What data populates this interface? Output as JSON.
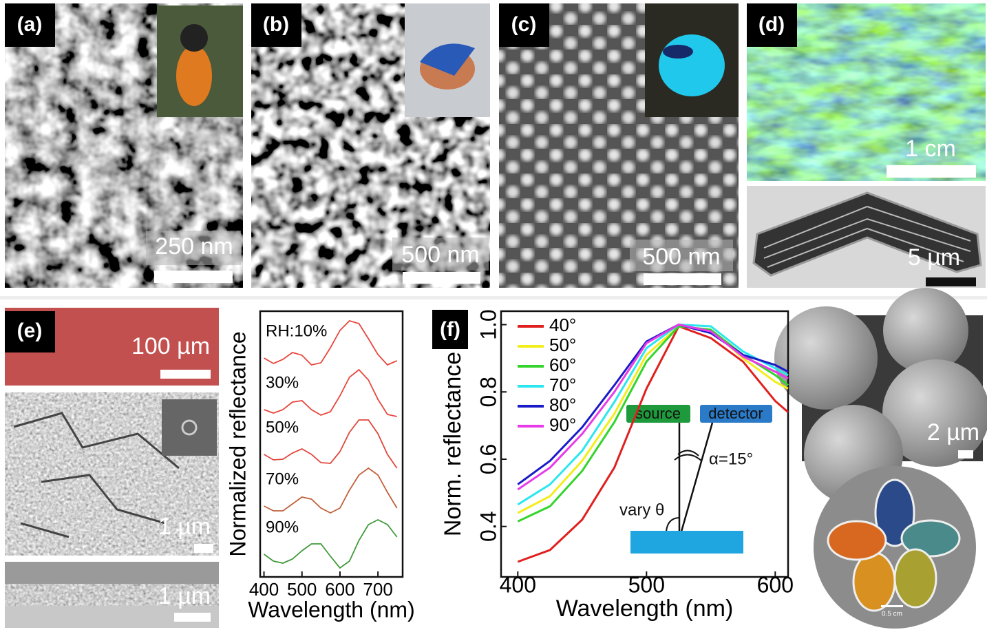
{
  "panels": {
    "a": {
      "label": "(a)",
      "scale_bar": "250 nm"
    },
    "b": {
      "label": "(b)",
      "scale_bar": "500 nm"
    },
    "c": {
      "label": "(c)",
      "scale_bar": "500 nm"
    },
    "d": {
      "label": "(d)",
      "scale_bars": [
        "1 cm",
        "5 µm"
      ]
    },
    "e": {
      "label": "(e)",
      "scale_bars": [
        "100 µm",
        "1 µm",
        "1 µm"
      ]
    },
    "f": {
      "label": "(f)"
    },
    "right": {
      "scale_bars": [
        "2 µm",
        "0.5 cm"
      ]
    }
  },
  "chart_data": [
    {
      "type": "line",
      "x_label": "Wavelength (nm)",
      "y_label": "Normalized reflectance",
      "legend": "inline",
      "x": [
        400,
        425,
        450,
        475,
        500,
        525,
        550,
        575,
        600,
        625,
        650,
        675,
        700,
        725,
        750
      ],
      "xlim": [
        390,
        765
      ],
      "xticks": [
        400,
        500,
        600,
        700
      ],
      "ylim": [
        0,
        386
      ],
      "series": [
        {
          "name": "RH:10%",
          "color": "#e8453c",
          "values": [
            318,
            310,
            316,
            326,
            322,
            308,
            311,
            333,
            358,
            372,
            368,
            346,
            323,
            308,
            314
          ]
        },
        {
          "name": "30%",
          "color": "#e8453c",
          "values": [
            243,
            238,
            243,
            254,
            256,
            243,
            235,
            240,
            263,
            290,
            301,
            286,
            258,
            236,
            233
          ]
        },
        {
          "name": "50%",
          "color": "#e0463a",
          "values": [
            178,
            170,
            171,
            180,
            186,
            178,
            166,
            165,
            182,
            210,
            228,
            228,
            208,
            178,
            158
          ]
        },
        {
          "name": "70%",
          "color": "#c0603a",
          "values": [
            103,
            96,
            96,
            106,
            116,
            113,
            100,
            93,
            100,
            126,
            148,
            158,
            148,
            123,
            100
          ]
        },
        {
          "name": "90%",
          "color": "#3f9a3a",
          "values": [
            33,
            23,
            20,
            26,
            38,
            48,
            48,
            30,
            13,
            23,
            53,
            76,
            83,
            76,
            58
          ]
        }
      ]
    },
    {
      "type": "line",
      "x_label": "Wavelength (nm)",
      "y_label": "Norm. reflectance",
      "legend": "upper left",
      "x": [
        400,
        425,
        450,
        475,
        500,
        525,
        550,
        575,
        600,
        610
      ],
      "xlim": [
        387,
        610
      ],
      "xticks": [
        400,
        500,
        600
      ],
      "ylim": [
        0.25,
        1.04
      ],
      "yticks": [
        0.4,
        0.6,
        0.8,
        {
          "value": 1,
          "label": "1.0"
        }
      ],
      "series": [
        {
          "name": "40°",
          "color": "#e0201e",
          "values": [
            0.295,
            0.33,
            0.42,
            0.575,
            0.81,
            0.995,
            0.96,
            0.89,
            0.773,
            0.74
          ]
        },
        {
          "name": "50°",
          "color": "#f2ee1a",
          "values": [
            0.44,
            0.49,
            0.595,
            0.735,
            0.91,
            0.995,
            0.985,
            0.9,
            0.83,
            0.81
          ]
        },
        {
          "name": "60°",
          "color": "#35d42c",
          "values": [
            0.415,
            0.46,
            0.565,
            0.71,
            0.89,
            0.995,
            0.985,
            0.91,
            0.85,
            0.82
          ]
        },
        {
          "name": "70°",
          "color": "#2ae6ee",
          "values": [
            0.465,
            0.525,
            0.625,
            0.77,
            0.93,
            1.0,
            0.995,
            0.92,
            0.87,
            0.85
          ]
        },
        {
          "name": "80°",
          "color": "#1a1ac8",
          "values": [
            0.525,
            0.595,
            0.695,
            0.82,
            0.95,
            1.0,
            0.975,
            0.91,
            0.88,
            0.86
          ]
        },
        {
          "name": "90°",
          "color": "#e83ae8",
          "values": [
            0.51,
            0.575,
            0.675,
            0.8,
            0.945,
            1.0,
            0.98,
            0.905,
            0.86,
            0.84
          ]
        }
      ],
      "annotations": [
        "source",
        "detector",
        "α=15°",
        "vary θ"
      ]
    }
  ]
}
